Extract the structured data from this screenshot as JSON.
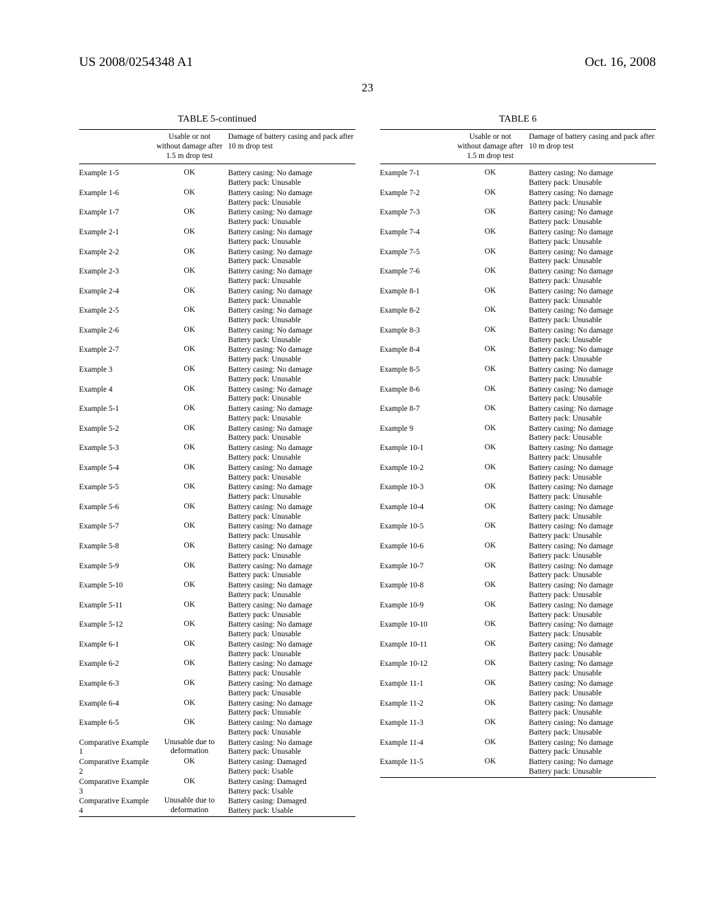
{
  "header": {
    "pub_number": "US 2008/0254348 A1",
    "date": "Oct. 16, 2008",
    "page_number": "23"
  },
  "tables": {
    "left": {
      "title": "TABLE 5-continued",
      "columns": {
        "usable": "Usable or not without damage after 1.5 m drop test",
        "damage": "Damage of battery casing and pack after 10 m drop test"
      },
      "rows": [
        {
          "name": "Example 1-5",
          "usable": "OK",
          "d1": "Battery casing: No damage",
          "d2": "Battery pack: Unusable"
        },
        {
          "name": "Example 1-6",
          "usable": "OK",
          "d1": "Battery casing: No damage",
          "d2": "Battery pack: Unusable"
        },
        {
          "name": "Example 1-7",
          "usable": "OK",
          "d1": "Battery casing: No damage",
          "d2": "Battery pack: Unusable"
        },
        {
          "name": "Example 2-1",
          "usable": "OK",
          "d1": "Battery casing: No damage",
          "d2": "Battery pack: Unusable"
        },
        {
          "name": "Example 2-2",
          "usable": "OK",
          "d1": "Battery casing: No damage",
          "d2": "Battery pack: Unusable"
        },
        {
          "name": "Example 2-3",
          "usable": "OK",
          "d1": "Battery casing: No damage",
          "d2": "Battery pack: Unusable"
        },
        {
          "name": "Example 2-4",
          "usable": "OK",
          "d1": "Battery casing: No damage",
          "d2": "Battery pack: Unusable"
        },
        {
          "name": "Example 2-5",
          "usable": "OK",
          "d1": "Battery casing: No damage",
          "d2": "Battery pack: Unusable"
        },
        {
          "name": "Example 2-6",
          "usable": "OK",
          "d1": "Battery casing: No damage",
          "d2": "Battery pack: Unusable"
        },
        {
          "name": "Example 2-7",
          "usable": "OK",
          "d1": "Battery casing: No damage",
          "d2": "Battery pack: Unusable"
        },
        {
          "name": "Example 3",
          "usable": "OK",
          "d1": "Battery casing: No damage",
          "d2": "Battery pack: Unusable"
        },
        {
          "name": "Example 4",
          "usable": "OK",
          "d1": "Battery casing: No damage",
          "d2": "Battery pack: Unusable"
        },
        {
          "name": "Example 5-1",
          "usable": "OK",
          "d1": "Battery casing: No damage",
          "d2": "Battery pack: Unusable"
        },
        {
          "name": "Example 5-2",
          "usable": "OK",
          "d1": "Battery casing: No damage",
          "d2": "Battery pack: Unusable"
        },
        {
          "name": "Example 5-3",
          "usable": "OK",
          "d1": "Battery casing: No damage",
          "d2": "Battery pack: Unusable"
        },
        {
          "name": "Example 5-4",
          "usable": "OK",
          "d1": "Battery casing: No damage",
          "d2": "Battery pack: Unusable"
        },
        {
          "name": "Example 5-5",
          "usable": "OK",
          "d1": "Battery casing: No damage",
          "d2": "Battery pack: Unusable"
        },
        {
          "name": "Example 5-6",
          "usable": "OK",
          "d1": "Battery casing: No damage",
          "d2": "Battery pack: Unusable"
        },
        {
          "name": "Example 5-7",
          "usable": "OK",
          "d1": "Battery casing: No damage",
          "d2": "Battery pack: Unusable"
        },
        {
          "name": "Example 5-8",
          "usable": "OK",
          "d1": "Battery casing: No damage",
          "d2": "Battery pack: Unusable"
        },
        {
          "name": "Example 5-9",
          "usable": "OK",
          "d1": "Battery casing: No damage",
          "d2": "Battery pack: Unusable"
        },
        {
          "name": "Example 5-10",
          "usable": "OK",
          "d1": "Battery casing: No damage",
          "d2": "Battery pack: Unusable"
        },
        {
          "name": "Example 5-11",
          "usable": "OK",
          "d1": "Battery casing: No damage",
          "d2": "Battery pack: Unusable"
        },
        {
          "name": "Example 5-12",
          "usable": "OK",
          "d1": "Battery casing: No damage",
          "d2": "Battery pack: Unusable"
        },
        {
          "name": "Example 6-1",
          "usable": "OK",
          "d1": "Battery casing: No damage",
          "d2": "Battery pack: Unusable"
        },
        {
          "name": "Example 6-2",
          "usable": "OK",
          "d1": "Battery casing: No damage",
          "d2": "Battery pack: Unusable"
        },
        {
          "name": "Example 6-3",
          "usable": "OK",
          "d1": "Battery casing: No damage",
          "d2": "Battery pack: Unusable"
        },
        {
          "name": "Example 6-4",
          "usable": "OK",
          "d1": "Battery casing: No damage",
          "d2": "Battery pack: Unusable"
        },
        {
          "name": "Example 6-5",
          "usable": "OK",
          "d1": "Battery casing: No damage",
          "d2": "Battery pack: Unusable"
        },
        {
          "name": "Comparative Example 1",
          "usable": "Unusable due to deformation",
          "d1": "Battery casing: No damage",
          "d2": "Battery pack: Unusable"
        },
        {
          "name": "Comparative Example 2",
          "usable": "OK",
          "d1": "Battery casing: Damaged",
          "d2": "Battery pack: Usable"
        },
        {
          "name": "Comparative Example 3",
          "usable": "OK",
          "d1": "Battery casing: Damaged",
          "d2": "Battery pack: Usable"
        },
        {
          "name": "Comparative Example 4",
          "usable": "Unusable due to deformation",
          "d1": "Battery casing: Damaged",
          "d2": "Battery pack: Usable"
        }
      ]
    },
    "right": {
      "title": "TABLE 6",
      "columns": {
        "usable": "Usable or not without damage after 1.5 m drop test",
        "damage": "Damage of battery casing and pack after 10 m drop test"
      },
      "rows": [
        {
          "name": "Example 7-1",
          "usable": "OK",
          "d1": "Battery casing: No damage",
          "d2": "Battery pack: Unusable"
        },
        {
          "name": "Example 7-2",
          "usable": "OK",
          "d1": "Battery casing: No damage",
          "d2": "Battery pack: Unusable"
        },
        {
          "name": "Example 7-3",
          "usable": "OK",
          "d1": "Battery casing: No damage",
          "d2": "Battery pack: Unusable"
        },
        {
          "name": "Example 7-4",
          "usable": "OK",
          "d1": "Battery casing: No damage",
          "d2": "Battery pack: Unusable"
        },
        {
          "name": "Example 7-5",
          "usable": "OK",
          "d1": "Battery casing: No damage",
          "d2": "Battery pack: Unusable"
        },
        {
          "name": "Example 7-6",
          "usable": "OK",
          "d1": "Battery casing: No damage",
          "d2": "Battery pack: Unusable"
        },
        {
          "name": "Example 8-1",
          "usable": "OK",
          "d1": "Battery casing: No damage",
          "d2": "Battery pack: Unusable"
        },
        {
          "name": "Example 8-2",
          "usable": "OK",
          "d1": "Battery casing: No damage",
          "d2": "Battery pack: Unusable"
        },
        {
          "name": "Example 8-3",
          "usable": "OK",
          "d1": "Battery casing: No damage",
          "d2": "Battery pack: Unusable"
        },
        {
          "name": "Example 8-4",
          "usable": "OK",
          "d1": "Battery casing: No damage",
          "d2": "Battery pack: Unusable"
        },
        {
          "name": "Example 8-5",
          "usable": "OK",
          "d1": "Battery casing: No damage",
          "d2": "Battery pack: Unusable"
        },
        {
          "name": "Example 8-6",
          "usable": "OK",
          "d1": "Battery casing: No damage",
          "d2": "Battery pack: Unusable"
        },
        {
          "name": "Example 8-7",
          "usable": "OK",
          "d1": "Battery casing: No damage",
          "d2": "Battery pack: Unusable"
        },
        {
          "name": "Example 9",
          "usable": "OK",
          "d1": "Battery casing: No damage",
          "d2": "Battery pack: Unusable"
        },
        {
          "name": "Example 10-1",
          "usable": "OK",
          "d1": "Battery casing: No damage",
          "d2": "Battery pack: Unusable"
        },
        {
          "name": "Example 10-2",
          "usable": "OK",
          "d1": "Battery casing: No damage",
          "d2": "Battery pack: Unusable"
        },
        {
          "name": "Example 10-3",
          "usable": "OK",
          "d1": "Battery casing: No damage",
          "d2": "Battery pack: Unusable"
        },
        {
          "name": "Example 10-4",
          "usable": "OK",
          "d1": "Battery casing: No damage",
          "d2": "Battery pack: Unusable"
        },
        {
          "name": "Example 10-5",
          "usable": "OK",
          "d1": "Battery casing: No damage",
          "d2": "Battery pack: Unusable"
        },
        {
          "name": "Example 10-6",
          "usable": "OK",
          "d1": "Battery casing: No damage",
          "d2": "Battery pack: Unusable"
        },
        {
          "name": "Example 10-7",
          "usable": "OK",
          "d1": "Battery casing: No damage",
          "d2": "Battery pack: Unusable"
        },
        {
          "name": "Example 10-8",
          "usable": "OK",
          "d1": "Battery casing: No damage",
          "d2": "Battery pack: Unusable"
        },
        {
          "name": "Example 10-9",
          "usable": "OK",
          "d1": "Battery casing: No damage",
          "d2": "Battery pack: Unusable"
        },
        {
          "name": "Example 10-10",
          "usable": "OK",
          "d1": "Battery casing: No damage",
          "d2": "Battery pack: Unusable"
        },
        {
          "name": "Example 10-11",
          "usable": "OK",
          "d1": "Battery casing: No damage",
          "d2": "Battery pack: Unusable"
        },
        {
          "name": "Example 10-12",
          "usable": "OK",
          "d1": "Battery casing: No damage",
          "d2": "Battery pack: Unusable"
        },
        {
          "name": "Example 11-1",
          "usable": "OK",
          "d1": "Battery casing: No damage",
          "d2": "Battery pack: Unusable"
        },
        {
          "name": "Example 11-2",
          "usable": "OK",
          "d1": "Battery casing: No damage",
          "d2": "Battery pack: Unusable"
        },
        {
          "name": "Example 11-3",
          "usable": "OK",
          "d1": "Battery casing: No damage",
          "d2": "Battery pack: Unusable"
        },
        {
          "name": "Example 11-4",
          "usable": "OK",
          "d1": "Battery casing: No damage",
          "d2": "Battery pack: Unusable"
        },
        {
          "name": "Example 11-5",
          "usable": "OK",
          "d1": "Battery casing: No damage",
          "d2": "Battery pack: Unusable"
        }
      ]
    }
  }
}
